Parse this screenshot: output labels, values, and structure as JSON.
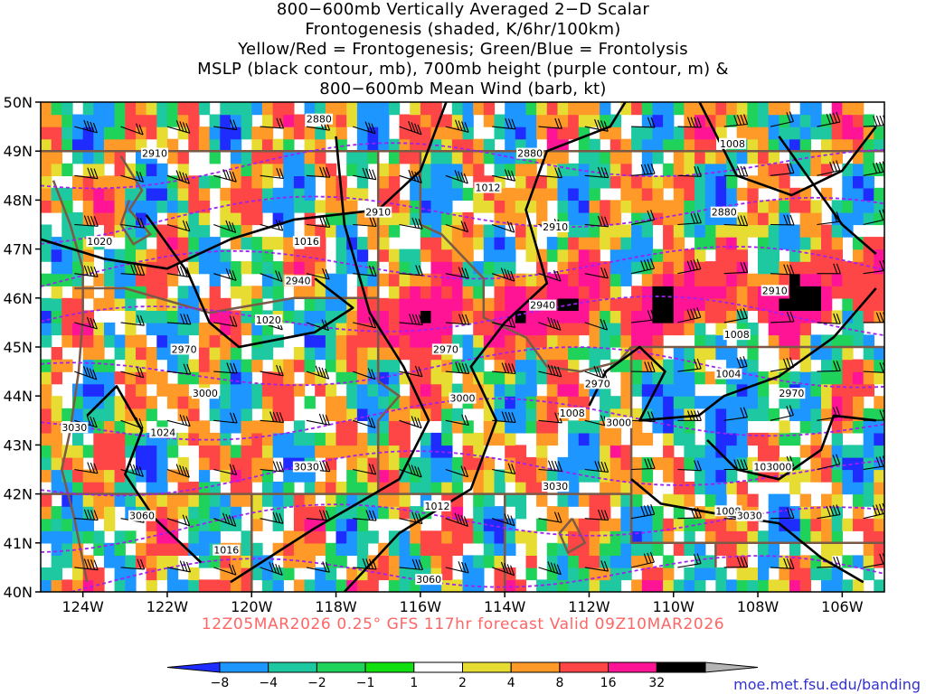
{
  "title_lines": [
    "800−600mb Vertically Averaged 2−D Scalar",
    "Frontogenesis (shaded, K/6hr/100km)",
    "Yellow/Red = Frontogenesis;  Green/Blue = Frontolysis",
    "MSLP (black contour, mb), 700mb height (purple contour, m) &",
    "800−600mb Mean Wind (barb, kt)"
  ],
  "subtitle": "12Z05MAR2026 0.25° GFS 117hr forecast Valid 09Z10MAR2026",
  "credit": "moe.met.fsu.edu/banding",
  "map": {
    "lat_labels": [
      "50N",
      "49N",
      "48N",
      "47N",
      "46N",
      "45N",
      "44N",
      "43N",
      "42N",
      "41N",
      "40N"
    ],
    "lon_labels": [
      "124W",
      "122W",
      "120W",
      "118W",
      "116W",
      "114W",
      "112W",
      "110W",
      "108W",
      "106W"
    ],
    "lat_range": [
      40,
      50
    ],
    "lon_range": [
      -125,
      -105
    ],
    "mslp_labels": [
      "1008",
      "1012",
      "1016",
      "1020",
      "1020",
      "1024",
      "1012",
      "1016",
      "1008",
      "1004",
      "1004",
      "1008",
      "1008"
    ],
    "height_labels": [
      "2880",
      "2880",
      "2910",
      "2910",
      "2910",
      "2880",
      "2940",
      "2940",
      "2970",
      "2970",
      "2970",
      "3000",
      "3000",
      "3000",
      "3030",
      "3030",
      "3060",
      "3060",
      "3000",
      "2970",
      "2910",
      "3030",
      "3030"
    ]
  },
  "colorbar": {
    "labels": [
      "−8",
      "−4",
      "−2",
      "−1",
      "1",
      "2",
      "4",
      "8",
      "16",
      "32"
    ],
    "colors": [
      "#1e2cff",
      "#1e96ff",
      "#1ec8a0",
      "#1ed25a",
      "#10e010",
      "#ffffff",
      "#e6dc32",
      "#ff9a28",
      "#ff4646",
      "#ff1496",
      "#000000",
      "#b4b4b4"
    ]
  },
  "colors": {
    "mslp": "#000000",
    "height": "#a020f0",
    "borders": "#7a5a46",
    "subtitle": "#ff6666",
    "credit": "#3333cc"
  }
}
